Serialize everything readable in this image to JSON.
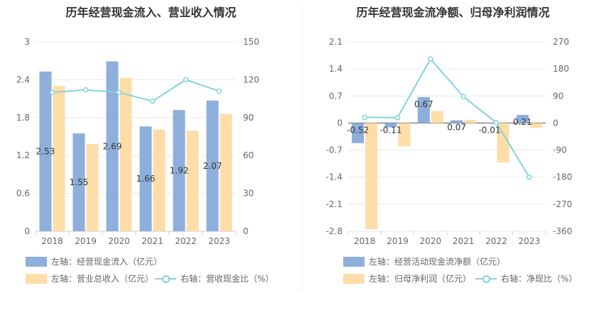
{
  "chart_data": [
    {
      "type": "bar",
      "title": "历年经营现金流入、营业收入情况",
      "categories": [
        "2018",
        "2019",
        "2020",
        "2021",
        "2022",
        "2023"
      ],
      "y_left": {
        "ylim": [
          0,
          3
        ],
        "ticks": [
          "0",
          "0.6",
          "1.2",
          "1.8",
          "2.4",
          "3"
        ]
      },
      "y_right": {
        "ylim": [
          0,
          150
        ],
        "ticks": [
          "0",
          "30",
          "60",
          "90",
          "120",
          "150"
        ]
      },
      "series": [
        {
          "name": "左轴：经营现金流入（亿元）",
          "type": "bar",
          "axis": "left",
          "color": "#8eaedb",
          "values": [
            2.53,
            1.55,
            2.69,
            1.66,
            1.92,
            2.07
          ],
          "labels": [
            "2.53",
            "1.55",
            "2.69",
            "1.66",
            "1.92",
            "2.07"
          ]
        },
        {
          "name": "左轴：营业总收入（亿元）",
          "type": "bar",
          "axis": "left",
          "color": "#fedda9",
          "values": [
            2.3,
            1.38,
            2.43,
            1.61,
            1.59,
            1.86
          ]
        },
        {
          "name": "右轴：营收现金比（%）",
          "type": "line",
          "axis": "right",
          "color": "#83d3d8",
          "values": [
            110,
            112,
            110,
            103,
            120,
            111
          ]
        }
      ]
    },
    {
      "type": "bar",
      "title": "历年经营现金流净额、归母净利润情况",
      "categories": [
        "2018",
        "2019",
        "2020",
        "2021",
        "2022",
        "2023"
      ],
      "y_left": {
        "ylim": [
          -2.8,
          2.1
        ],
        "ticks": [
          "-2.8",
          "-2.1",
          "-1.4",
          "-0.7",
          "0",
          "0.7",
          "1.4",
          "2.1"
        ]
      },
      "y_right": {
        "ylim": [
          -360,
          270
        ],
        "ticks": [
          "-360",
          "-270",
          "-180",
          "-90",
          "0",
          "90",
          "180",
          "270"
        ]
      },
      "series": [
        {
          "name": "左轴：经营活动现金流净额（亿元）",
          "type": "bar",
          "axis": "left",
          "color": "#8eaedb",
          "values": [
            -0.52,
            -0.11,
            0.67,
            0.07,
            -0.01,
            0.21
          ],
          "labels": [
            "-0.52",
            "-0.11",
            "0.67",
            "0.07",
            "-0.01",
            "0.21"
          ]
        },
        {
          "name": "左轴：归母净利润（亿元）",
          "type": "bar",
          "axis": "left",
          "color": "#fedda9",
          "values": [
            -2.75,
            -0.6,
            0.31,
            0.08,
            -1.02,
            -0.12
          ]
        },
        {
          "name": "右轴：净现比（%）",
          "type": "line",
          "axis": "right",
          "color": "#83d3d8",
          "values": [
            19,
            18,
            213,
            88,
            1,
            -180
          ]
        }
      ]
    }
  ]
}
